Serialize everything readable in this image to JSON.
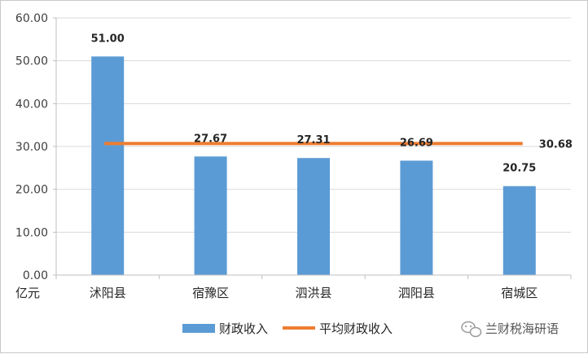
{
  "chart_data": {
    "type": "bar",
    "categories": [
      "沭阳县",
      "宿豫区",
      "泗洪县",
      "泗阳县",
      "宿城区"
    ],
    "series": [
      {
        "name": "财政收入",
        "type": "bar",
        "values": [
          51.0,
          27.67,
          27.31,
          26.69,
          20.75
        ]
      },
      {
        "name": "平均财政收入",
        "type": "line",
        "values": [
          30.68,
          30.68,
          30.68,
          30.68,
          30.68
        ]
      }
    ],
    "data_labels": [
      "51.00",
      "27.67",
      "27.31",
      "26.69",
      "20.75"
    ],
    "average_label": "30.68",
    "yticks": [
      "0.00",
      "10.00",
      "20.00",
      "30.00",
      "40.00",
      "50.00",
      "60.00"
    ],
    "ylim": [
      0,
      60
    ],
    "ylabel": "亿元",
    "xlabel": "",
    "title": "",
    "grid": true,
    "legend_position": "bottom",
    "colors": {
      "bar": "#5b9bd5",
      "line": "#ed7d31",
      "grid": "#d9d9d9",
      "axis": "#bfbfbf"
    }
  },
  "watermark": {
    "icon": "wechat-icon",
    "text": "兰财税海研语"
  }
}
